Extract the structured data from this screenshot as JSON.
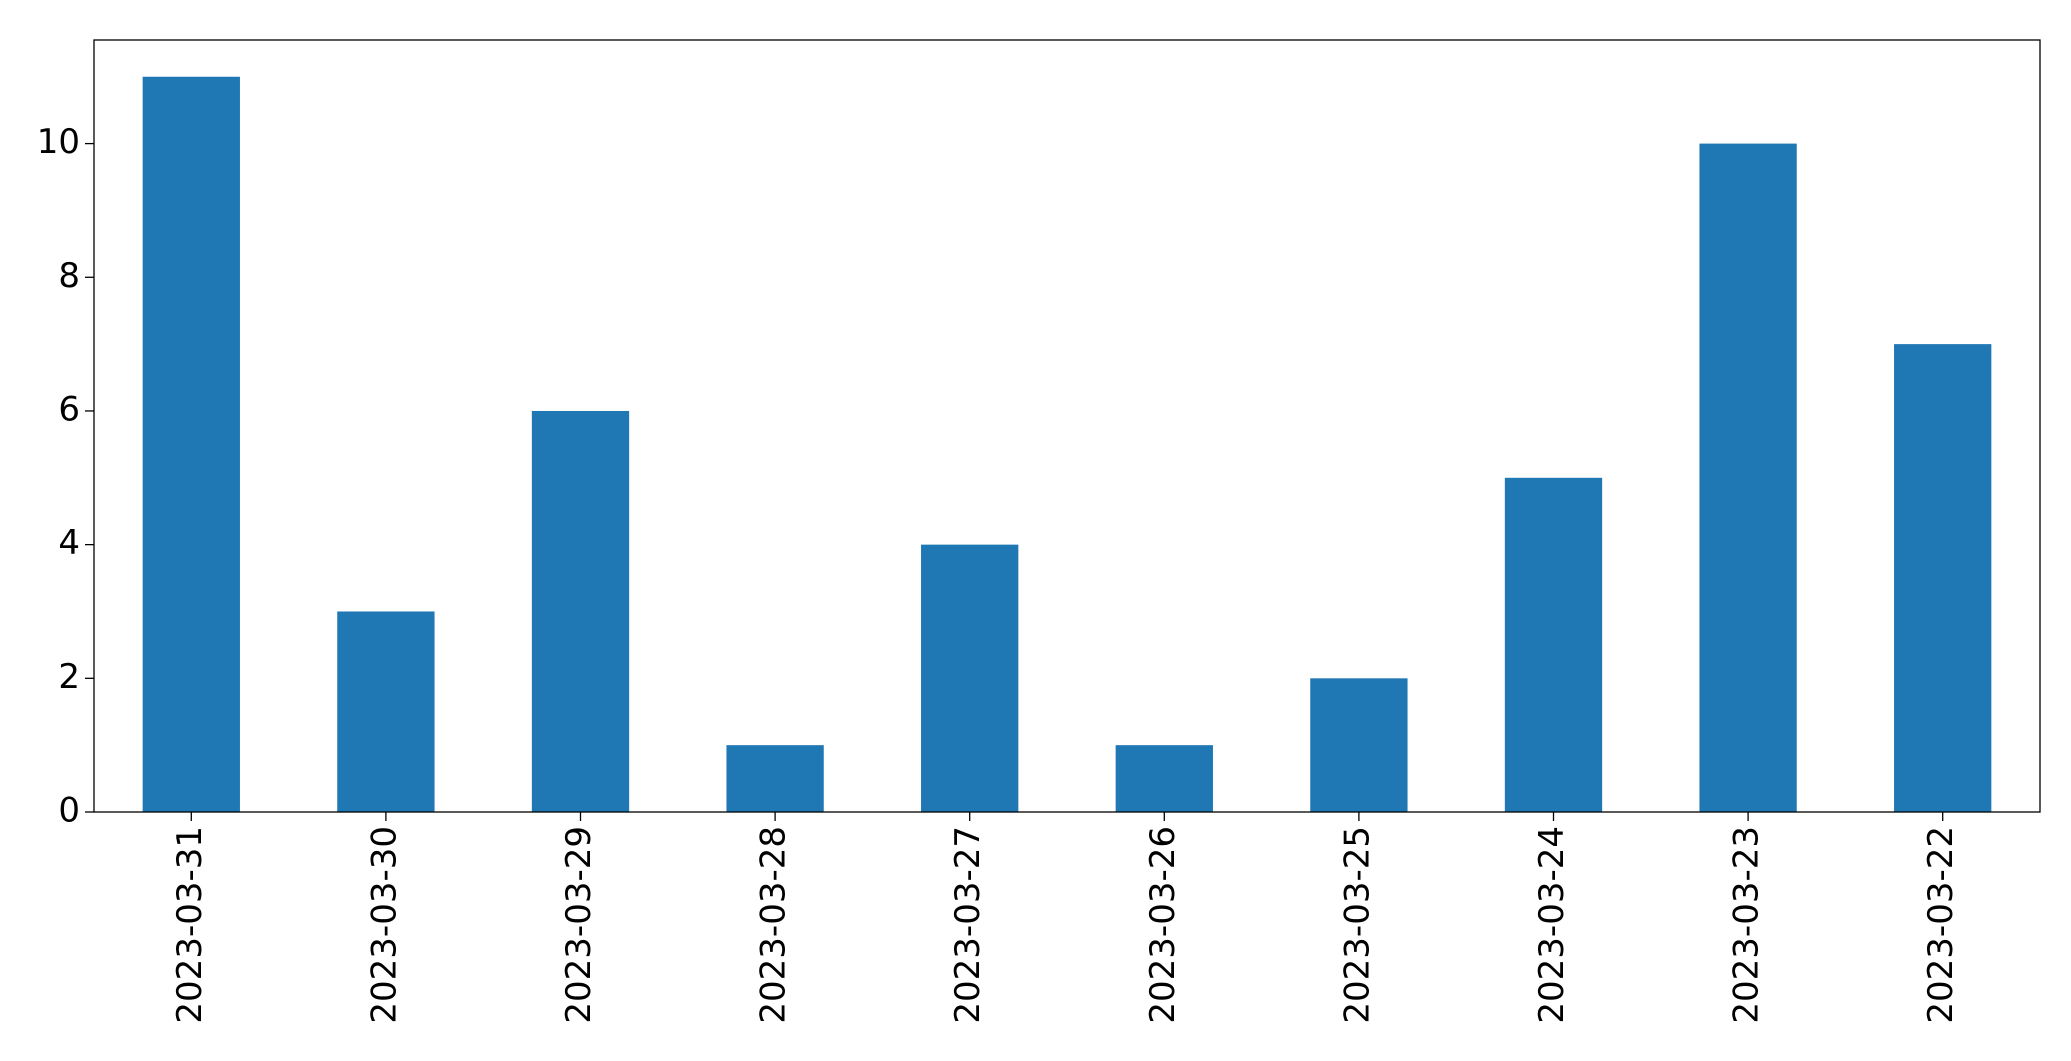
{
  "chart_data": {
    "type": "bar",
    "categories": [
      "2023-03-31",
      "2023-03-30",
      "2023-03-29",
      "2023-03-28",
      "2023-03-27",
      "2023-03-26",
      "2023-03-25",
      "2023-03-24",
      "2023-03-23",
      "2023-03-22"
    ],
    "values": [
      11,
      3,
      6,
      1,
      4,
      1,
      2,
      5,
      10,
      7
    ],
    "color": "#1f77b4",
    "ylim": [
      0,
      11.55
    ],
    "yticks": [
      0,
      2,
      4,
      6,
      8,
      10
    ],
    "grid": false
  }
}
